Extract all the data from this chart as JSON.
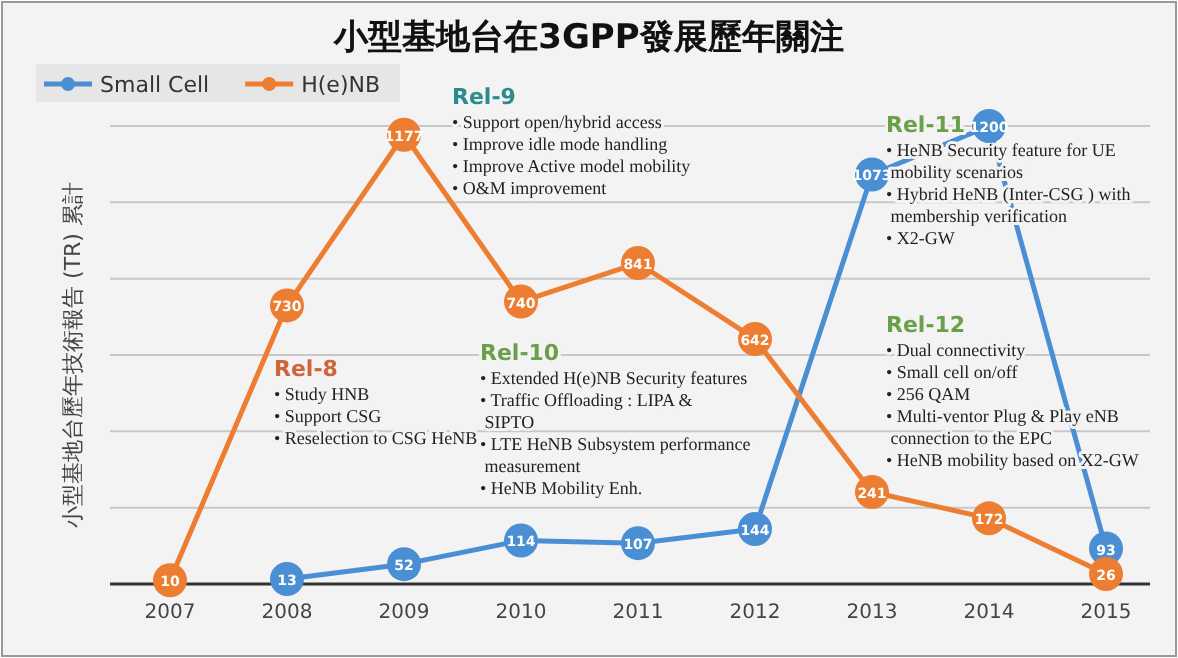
{
  "chart_data": {
    "type": "line",
    "title": "小型基地台在3GPP發展歷年關注",
    "ylabel": "小型基地台歷年技術報告 (TR) 累計",
    "categories": [
      "2007",
      "2008",
      "2009",
      "2010",
      "2011",
      "2012",
      "2013",
      "2014",
      "2015"
    ],
    "series": [
      {
        "name": "Small Cell",
        "color": "#4a8fd4",
        "values": [
          null,
          13,
          52,
          114,
          107,
          144,
          1073,
          1200,
          93
        ]
      },
      {
        "name": "H(e)NB",
        "color": "#ed7d31",
        "values": [
          10,
          730,
          1177,
          740,
          841,
          642,
          241,
          172,
          26
        ]
      }
    ],
    "yticks": [
      {
        "value": 0,
        "label": null
      },
      {
        "value": 200,
        "label": null
      },
      {
        "value": 400,
        "label": null
      },
      {
        "value": 600,
        "label": null
      },
      {
        "value": 800,
        "label": null
      },
      {
        "value": 1000,
        "label": null
      },
      {
        "value": 1200,
        "label": null
      }
    ],
    "tick_labels": "x",
    "grid": "y",
    "legend": "top left",
    "marker": "circle",
    "line_style": "solid",
    "data_labels": true,
    "annotations": [
      "Rel-9",
      "• Support open/hybrid access\n• Improve idle mode handling\n• Improve Active model mobility\n• O&M improvement",
      "Rel-8",
      "• Study HNB\n• Support CSG\n• Reselection to CSG HeNB",
      "Rel-10",
      "• Extended H(e)NB Security features\n• Traffic Offloading : LIPA &\n  SIPTO\n• LTE HeNB Subsystem performance\n  measurement\n• HeNB Mobility Enh.",
      "Rel-11",
      "• HeNB Security feature for UE\n  mobility scenarios\n• Hybrid HeNB (Inter-CSG ) with\n  membership verification\n• X2-GW",
      "Rel-12",
      "• Dual connectivity\n• Small cell on/off\n• 256 QAM\n• Multi-ventor Plug & Play eNB\n  connection to the EPC\n• HeNB mobility based on X2-GW"
    ]
  }
}
